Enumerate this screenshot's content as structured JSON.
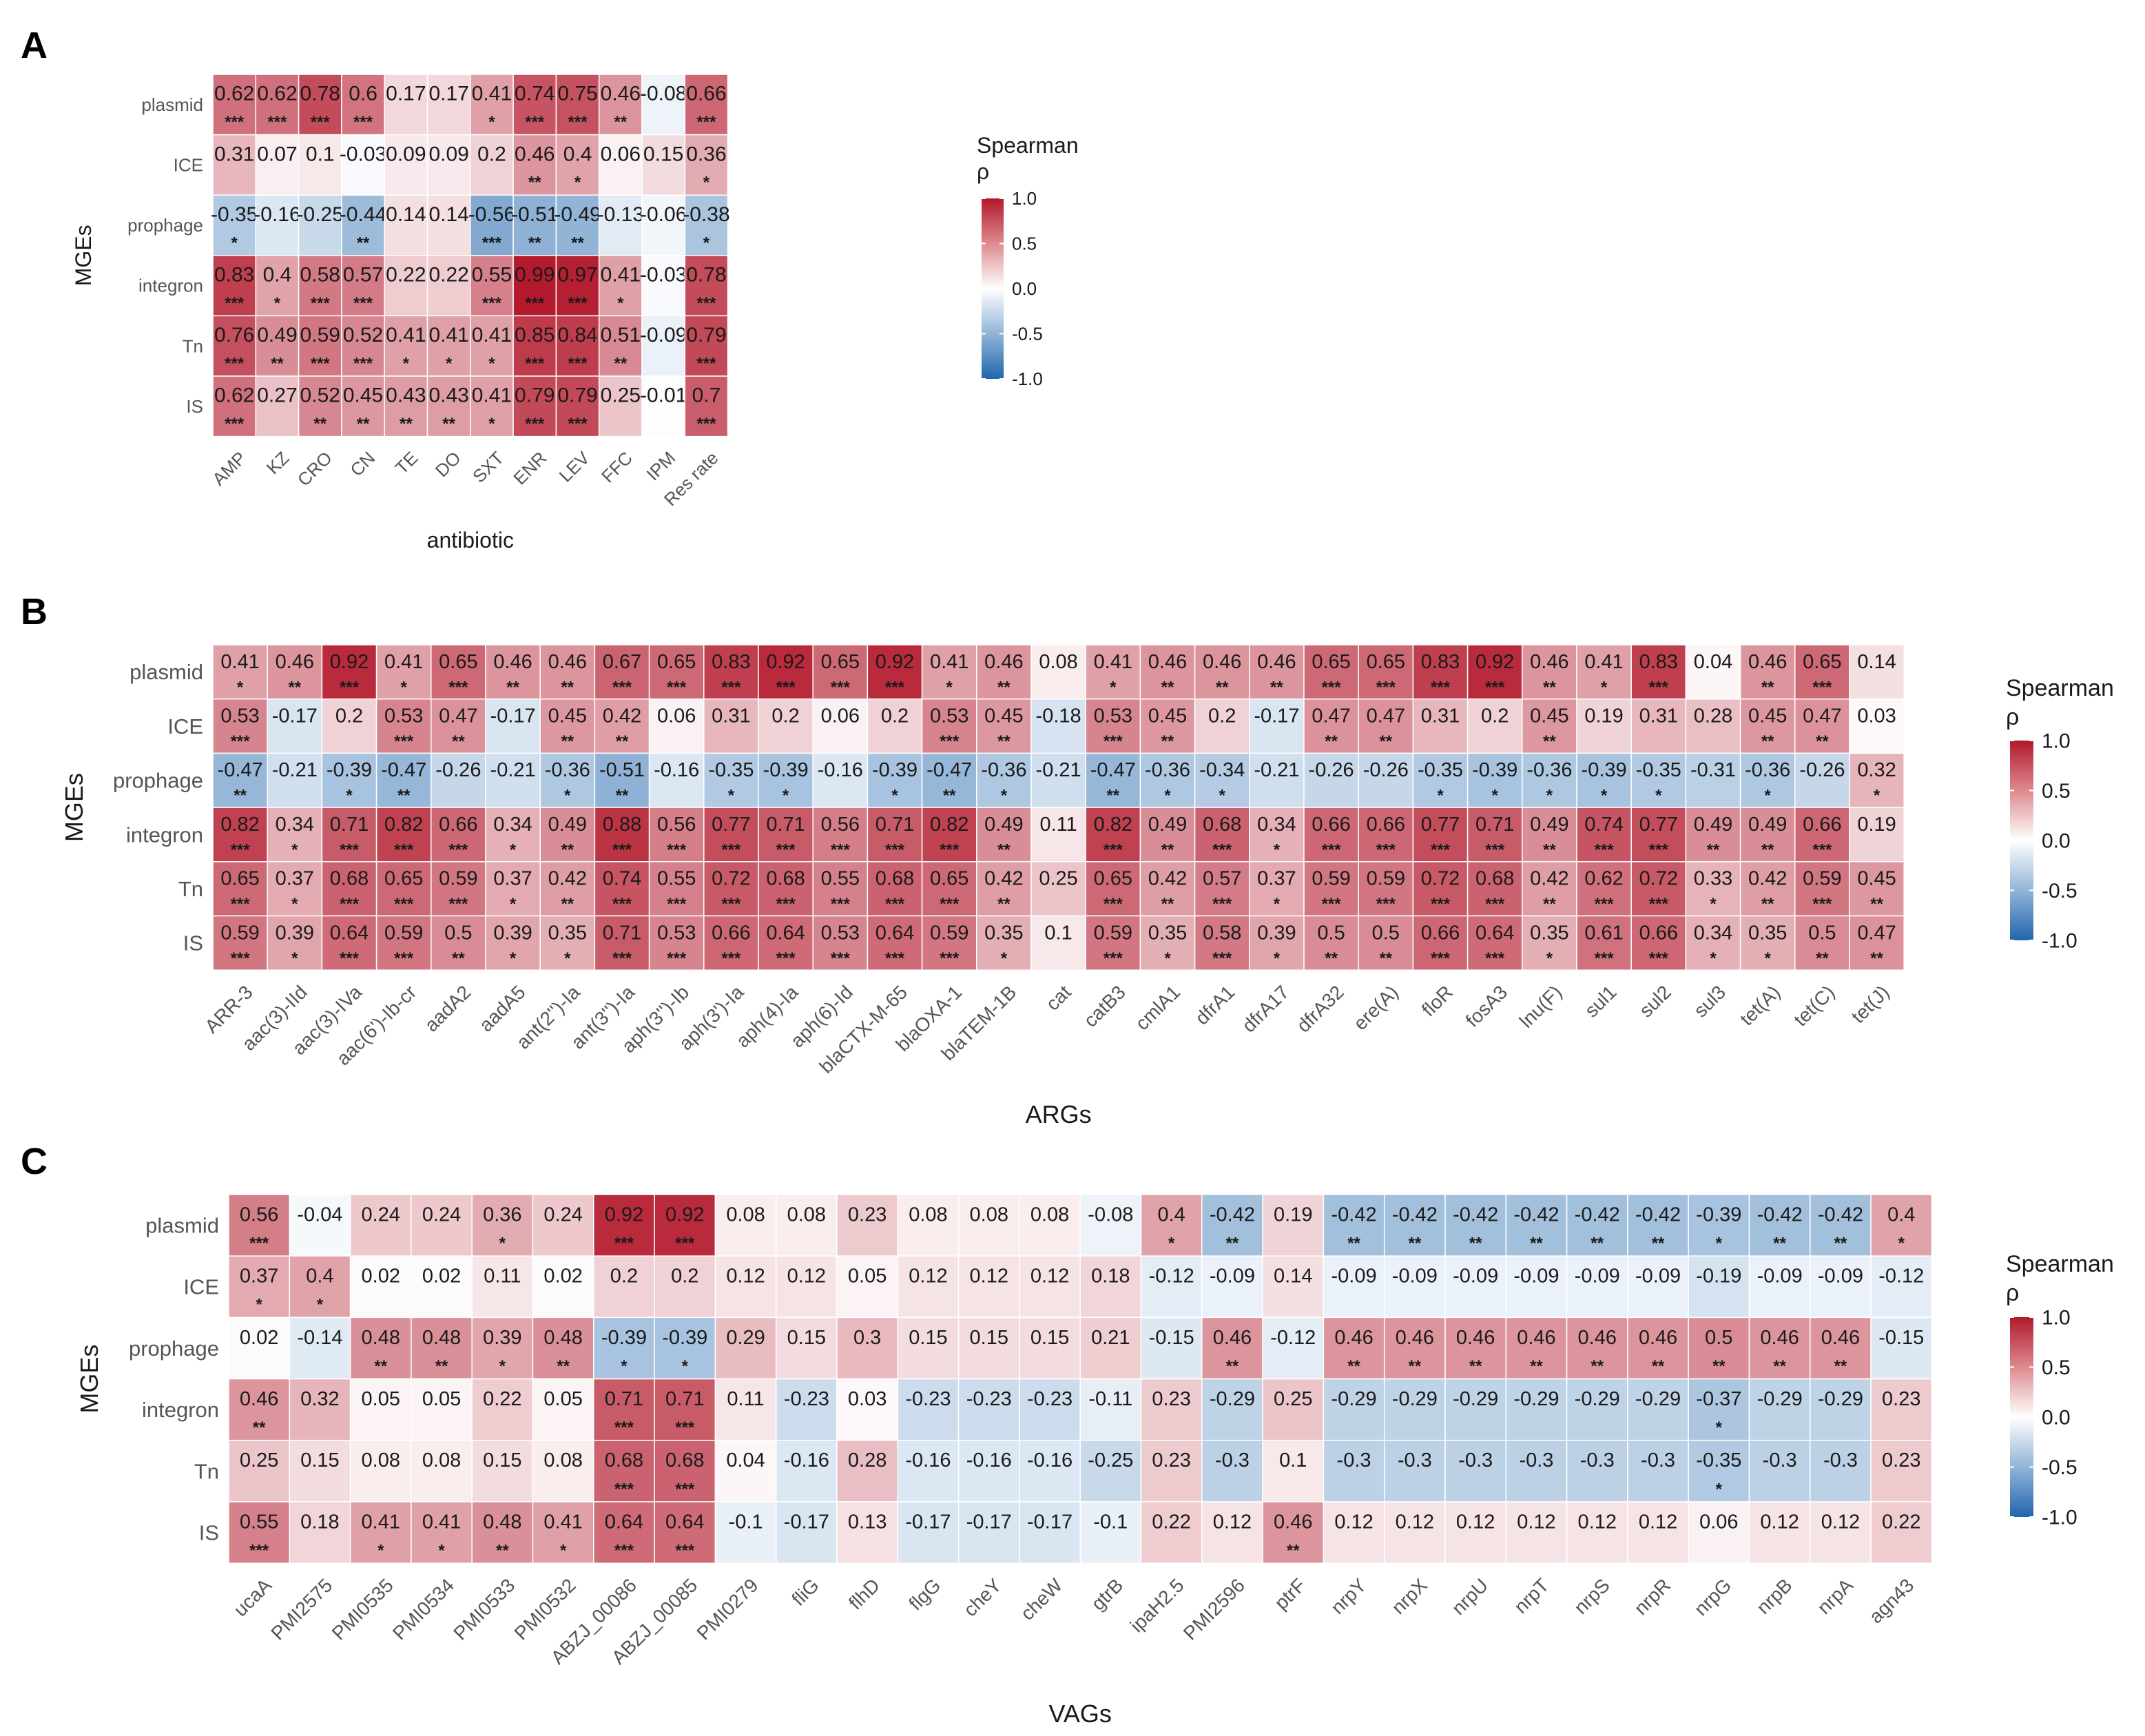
{
  "panel_labels": [
    "A",
    "B",
    "C"
  ],
  "legend": {
    "title_line1": "Spearman",
    "title_line2": "ρ",
    "ticks": [
      "1.0",
      "0.5",
      "0.0",
      "-0.5",
      "-1.0"
    ]
  },
  "colors": {
    "positive": "#b2182b",
    "neutral": "#ffffff",
    "negative": "#2166ac",
    "text": "#1a1a1a",
    "axis_text": "#555555"
  },
  "chart_data": [
    {
      "type": "heatmap",
      "panel": "A",
      "xlabel": "antibiotic",
      "ylabel": "MGEs",
      "legend_title": "Spearman ρ",
      "zlim": [
        -1,
        1
      ],
      "rows": [
        "plasmid",
        "ICE",
        "prophage",
        "integron",
        "Tn",
        "IS"
      ],
      "cols": [
        "AMP",
        "KZ",
        "CRO",
        "CN",
        "TE",
        "DO",
        "SXT",
        "ENR",
        "LEV",
        "FFC",
        "IPM",
        "Res rate"
      ],
      "values": [
        [
          0.62,
          0.62,
          0.78,
          0.6,
          0.17,
          0.17,
          0.41,
          0.74,
          0.75,
          0.46,
          -0.08,
          0.66
        ],
        [
          0.31,
          0.07,
          0.1,
          -0.03,
          0.09,
          0.09,
          0.2,
          0.46,
          0.4,
          0.06,
          0.15,
          0.36
        ],
        [
          -0.35,
          -0.16,
          -0.25,
          -0.44,
          0.14,
          0.14,
          -0.56,
          -0.51,
          -0.49,
          -0.13,
          -0.06,
          -0.38
        ],
        [
          0.83,
          0.4,
          0.58,
          0.57,
          0.22,
          0.22,
          0.55,
          0.99,
          0.97,
          0.41,
          -0.03,
          0.78
        ],
        [
          0.76,
          0.49,
          0.59,
          0.52,
          0.41,
          0.41,
          0.41,
          0.85,
          0.84,
          0.51,
          -0.09,
          0.79
        ],
        [
          0.62,
          0.27,
          0.52,
          0.45,
          0.43,
          0.43,
          0.41,
          0.79,
          0.79,
          0.25,
          -0.01,
          0.7
        ]
      ],
      "signif": [
        [
          "***",
          "***",
          "***",
          "***",
          "",
          "",
          "*",
          "***",
          "***",
          "**",
          "",
          "***"
        ],
        [
          "",
          "",
          "",
          "",
          "",
          "",
          "",
          "**",
          "*",
          "",
          "",
          "*"
        ],
        [
          "*",
          "",
          "",
          "**",
          "",
          "",
          "***",
          "**",
          "**",
          "",
          "",
          "*"
        ],
        [
          "***",
          "*",
          "***",
          "***",
          "",
          "",
          "***",
          "***",
          "***",
          "*",
          "",
          "***"
        ],
        [
          "***",
          "**",
          "***",
          "***",
          "*",
          "*",
          "*",
          "***",
          "***",
          "**",
          "",
          "***"
        ],
        [
          "***",
          "",
          "**",
          "**",
          "**",
          "**",
          "*",
          "***",
          "***",
          "",
          "",
          "***"
        ]
      ]
    },
    {
      "type": "heatmap",
      "panel": "B",
      "xlabel": "ARGs",
      "ylabel": "MGEs",
      "legend_title": "Spearman ρ",
      "zlim": [
        -1,
        1
      ],
      "rows": [
        "plasmid",
        "ICE",
        "prophage",
        "integron",
        "Tn",
        "IS"
      ],
      "cols": [
        "ARR-3",
        "aac(3)-IId",
        "aac(3)-IVa",
        "aac(6')-Ib-cr",
        "aadA2",
        "aadA5",
        "ant(2'')-Ia",
        "ant(3'')-Ia",
        "aph(3'')-Ib",
        "aph(3')-Ia",
        "aph(4)-Ia",
        "aph(6)-Id",
        "blaCTX-M-65",
        "blaOXA-1",
        "blaTEM-1B",
        "cat",
        "catB3",
        "cmlA1",
        "dfrA1",
        "dfrA17",
        "dfrA32",
        "ere(A)",
        "floR",
        "fosA3",
        "lnu(F)",
        "sul1",
        "sul2",
        "sul3",
        "tet(A)",
        "tet(C)",
        "tet(J)"
      ],
      "values": [
        [
          0.41,
          0.46,
          0.92,
          0.41,
          0.65,
          0.46,
          0.46,
          0.67,
          0.65,
          0.83,
          0.92,
          0.65,
          0.92,
          0.41,
          0.46,
          0.08,
          0.41,
          0.46,
          0.46,
          0.46,
          0.65,
          0.65,
          0.83,
          0.92,
          0.46,
          0.41,
          0.83,
          0.04,
          0.46,
          0.65,
          0.14
        ],
        [
          0.53,
          -0.17,
          0.2,
          0.53,
          0.47,
          -0.17,
          0.45,
          0.42,
          0.06,
          0.31,
          0.2,
          0.06,
          0.2,
          0.53,
          0.45,
          -0.18,
          0.53,
          0.45,
          0.2,
          -0.17,
          0.47,
          0.47,
          0.31,
          0.2,
          0.45,
          0.19,
          0.31,
          0.28,
          0.45,
          0.47,
          0.03
        ],
        [
          -0.47,
          -0.21,
          -0.39,
          -0.47,
          -0.26,
          -0.21,
          -0.36,
          -0.51,
          -0.16,
          -0.35,
          -0.39,
          -0.16,
          -0.39,
          -0.47,
          -0.36,
          -0.21,
          -0.47,
          -0.36,
          -0.34,
          -0.21,
          -0.26,
          -0.26,
          -0.35,
          -0.39,
          -0.36,
          -0.39,
          -0.35,
          -0.31,
          -0.36,
          -0.26,
          0.32
        ],
        [
          0.82,
          0.34,
          0.71,
          0.82,
          0.66,
          0.34,
          0.49,
          0.88,
          0.56,
          0.77,
          0.71,
          0.56,
          0.71,
          0.82,
          0.49,
          0.11,
          0.82,
          0.49,
          0.68,
          0.34,
          0.66,
          0.66,
          0.77,
          0.71,
          0.49,
          0.74,
          0.77,
          0.49,
          0.49,
          0.66,
          0.19
        ],
        [
          0.65,
          0.37,
          0.68,
          0.65,
          0.59,
          0.37,
          0.42,
          0.74,
          0.55,
          0.72,
          0.68,
          0.55,
          0.68,
          0.65,
          0.42,
          0.25,
          0.65,
          0.42,
          0.57,
          0.37,
          0.59,
          0.59,
          0.72,
          0.68,
          0.42,
          0.62,
          0.72,
          0.33,
          0.42,
          0.59,
          0.45
        ],
        [
          0.59,
          0.39,
          0.64,
          0.59,
          0.5,
          0.39,
          0.35,
          0.71,
          0.53,
          0.66,
          0.64,
          0.53,
          0.64,
          0.59,
          0.35,
          0.1,
          0.59,
          0.35,
          0.58,
          0.39,
          0.5,
          0.5,
          0.66,
          0.64,
          0.35,
          0.61,
          0.66,
          0.34,
          0.35,
          0.5,
          0.47
        ]
      ],
      "signif": [
        [
          "*",
          "**",
          "***",
          "*",
          "***",
          "**",
          "**",
          "***",
          "***",
          "***",
          "***",
          "***",
          "***",
          "*",
          "**",
          "",
          "*",
          "**",
          "**",
          "**",
          "***",
          "***",
          "***",
          "***",
          "**",
          "*",
          "***",
          "",
          "**",
          "***",
          ""
        ],
        [
          "***",
          "",
          "",
          "***",
          "**",
          "",
          "**",
          "**",
          "",
          "",
          "",
          "",
          "",
          "***",
          "**",
          "",
          "***",
          "**",
          "",
          "",
          "**",
          "**",
          "",
          "",
          "**",
          "",
          "",
          "",
          "**",
          "**",
          ""
        ],
        [
          "**",
          "",
          "*",
          "**",
          "",
          "",
          "*",
          "**",
          "",
          "*",
          "*",
          "",
          "*",
          "**",
          "*",
          "",
          "**",
          "*",
          "*",
          "",
          "",
          "",
          "*",
          "*",
          "*",
          "*",
          "*",
          "",
          "*",
          "",
          "*"
        ],
        [
          "***",
          "*",
          "***",
          "***",
          "***",
          "*",
          "**",
          "***",
          "***",
          "***",
          "***",
          "***",
          "***",
          "***",
          "**",
          "",
          "***",
          "**",
          "***",
          "*",
          "***",
          "***",
          "***",
          "***",
          "**",
          "***",
          "***",
          "**",
          "**",
          "***",
          ""
        ],
        [
          "***",
          "*",
          "***",
          "***",
          "***",
          "*",
          "**",
          "***",
          "***",
          "***",
          "***",
          "***",
          "***",
          "***",
          "**",
          "",
          "***",
          "**",
          "***",
          "*",
          "***",
          "***",
          "***",
          "***",
          "**",
          "***",
          "***",
          "*",
          "**",
          "***",
          "**"
        ],
        [
          "***",
          "*",
          "***",
          "***",
          "**",
          "*",
          "*",
          "***",
          "***",
          "***",
          "***",
          "***",
          "***",
          "***",
          "*",
          "",
          "***",
          "*",
          "***",
          "*",
          "**",
          "**",
          "***",
          "***",
          "*",
          "***",
          "***",
          "*",
          "*",
          "**",
          "**"
        ]
      ]
    },
    {
      "type": "heatmap",
      "panel": "C",
      "xlabel": "VAGs",
      "ylabel": "MGEs",
      "legend_title": "Spearman ρ",
      "zlim": [
        -1,
        1
      ],
      "rows": [
        "plasmid",
        "ICE",
        "prophage",
        "integron",
        "Tn",
        "IS"
      ],
      "cols": [
        "ucaA",
        "PMI2575",
        "PMI0535",
        "PMI0534",
        "PMI0533",
        "PMI0532",
        "ABZJ_00086",
        "ABZJ_00085",
        "PMI0279",
        "fliG",
        "flhD",
        "flgG",
        "cheY",
        "cheW",
        "gtrB",
        "ipaH2.5",
        "PMI2596",
        "ptrF",
        "nrpY",
        "nrpX",
        "nrpU",
        "nrpT",
        "nrpS",
        "nrpR",
        "nrpG",
        "nrpB",
        "nrpA",
        "agn43"
      ],
      "values": [
        [
          0.56,
          -0.04,
          0.24,
          0.24,
          0.36,
          0.24,
          0.92,
          0.92,
          0.08,
          0.08,
          0.23,
          0.08,
          0.08,
          0.08,
          -0.08,
          0.4,
          -0.42,
          0.19,
          -0.42,
          -0.42,
          -0.42,
          -0.42,
          -0.42,
          -0.42,
          -0.39,
          -0.42,
          -0.42,
          0.4
        ],
        [
          0.37,
          0.4,
          0.02,
          0.02,
          0.11,
          0.02,
          0.2,
          0.2,
          0.12,
          0.12,
          0.05,
          0.12,
          0.12,
          0.12,
          0.18,
          -0.12,
          -0.09,
          0.14,
          -0.09,
          -0.09,
          -0.09,
          -0.09,
          -0.09,
          -0.09,
          -0.19,
          -0.09,
          -0.09,
          -0.12
        ],
        [
          0.02,
          -0.14,
          0.48,
          0.48,
          0.39,
          0.48,
          -0.39,
          -0.39,
          0.29,
          0.15,
          0.3,
          0.15,
          0.15,
          0.15,
          0.21,
          -0.15,
          0.46,
          -0.12,
          0.46,
          0.46,
          0.46,
          0.46,
          0.46,
          0.46,
          0.5,
          0.46,
          0.46,
          -0.15
        ],
        [
          0.46,
          0.32,
          0.05,
          0.05,
          0.22,
          0.05,
          0.71,
          0.71,
          0.11,
          -0.23,
          0.03,
          -0.23,
          -0.23,
          -0.23,
          -0.11,
          0.23,
          -0.29,
          0.25,
          -0.29,
          -0.29,
          -0.29,
          -0.29,
          -0.29,
          -0.29,
          -0.37,
          -0.29,
          -0.29,
          0.23
        ],
        [
          0.25,
          0.15,
          0.08,
          0.08,
          0.15,
          0.08,
          0.68,
          0.68,
          0.04,
          -0.16,
          0.28,
          -0.16,
          -0.16,
          -0.16,
          -0.25,
          0.23,
          -0.3,
          0.1,
          -0.3,
          -0.3,
          -0.3,
          -0.3,
          -0.3,
          -0.3,
          -0.35,
          -0.3,
          -0.3,
          0.23
        ],
        [
          0.55,
          0.18,
          0.41,
          0.41,
          0.48,
          0.41,
          0.64,
          0.64,
          -0.1,
          -0.17,
          0.13,
          -0.17,
          -0.17,
          -0.17,
          -0.1,
          0.22,
          0.12,
          0.46,
          0.12,
          0.12,
          0.12,
          0.12,
          0.12,
          0.12,
          0.06,
          0.12,
          0.12,
          0.22
        ]
      ],
      "signif": [
        [
          "***",
          "",
          "",
          "",
          "*",
          "",
          "***",
          "***",
          "",
          "",
          "",
          "",
          "",
          "",
          "",
          "*",
          "**",
          "",
          "**",
          "**",
          "**",
          "**",
          "**",
          "**",
          "*",
          "**",
          "**",
          "*"
        ],
        [
          "*",
          "*",
          "",
          "",
          "",
          "",
          "",
          "",
          "",
          "",
          "",
          "",
          "",
          "",
          "",
          "",
          "",
          "",
          "",
          "",
          "",
          "",
          "",
          "",
          "",
          "",
          "",
          ""
        ],
        [
          "",
          "",
          "**",
          "**",
          "*",
          "**",
          "*",
          "*",
          "",
          "",
          "",
          "",
          "",
          "",
          "",
          "",
          "**",
          "",
          "**",
          "**",
          "**",
          "**",
          "**",
          "**",
          "**",
          "**",
          "**",
          ""
        ],
        [
          "**",
          "",
          "",
          "",
          "",
          "",
          "***",
          "***",
          "",
          "",
          "",
          "",
          "",
          "",
          "",
          "",
          "",
          "",
          "",
          "",
          "",
          "",
          "",
          "",
          "*",
          "",
          "",
          ""
        ],
        [
          "",
          "",
          "",
          "",
          "",
          "",
          "***",
          "***",
          "",
          "",
          "",
          "",
          "",
          "",
          "",
          "",
          "",
          "",
          "",
          "",
          "",
          "",
          "",
          "",
          "*",
          "",
          "",
          ""
        ],
        [
          "***",
          "",
          "*",
          "*",
          "**",
          "*",
          "***",
          "***",
          "",
          "",
          "",
          "",
          "",
          "",
          "",
          "",
          "",
          "**",
          "",
          "",
          "",
          "",
          "",
          "",
          "",
          "",
          "",
          ""
        ]
      ]
    }
  ]
}
